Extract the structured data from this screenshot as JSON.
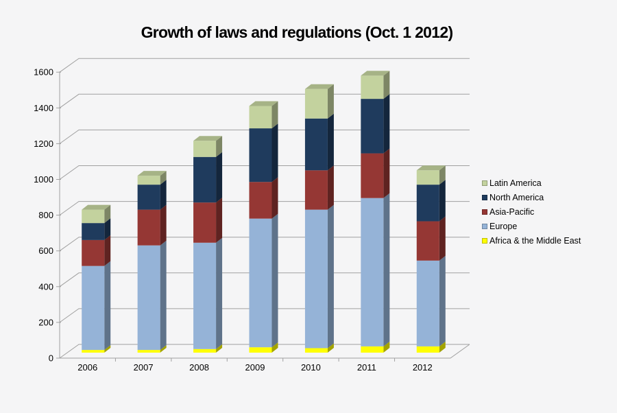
{
  "chart_data": {
    "type": "bar",
    "variant": "3d-stacked-column",
    "title": "Growth of laws and regulations (Oct. 1 2012)",
    "categories": [
      "2006",
      "2007",
      "2008",
      "2009",
      "2010",
      "2011",
      "2012"
    ],
    "series": [
      {
        "name": "Africa & the Middle East",
        "color": "#FFFF00",
        "values": [
          15,
          15,
          20,
          30,
          25,
          35,
          35
        ]
      },
      {
        "name": "Europe",
        "color": "#95B3D7",
        "values": [
          470,
          585,
          595,
          720,
          775,
          830,
          480
        ]
      },
      {
        "name": "Asia-Pacific",
        "color": "#953734",
        "values": [
          145,
          200,
          225,
          205,
          220,
          250,
          220
        ]
      },
      {
        "name": "North America",
        "color": "#1F3B5D",
        "values": [
          95,
          140,
          255,
          300,
          290,
          305,
          205
        ]
      },
      {
        "name": "Latin America",
        "color": "#C3D29E",
        "values": [
          75,
          50,
          90,
          125,
          165,
          130,
          80
        ]
      }
    ],
    "stack_totals": [
      800,
      990,
      1185,
      1380,
      1475,
      1550,
      1020
    ],
    "ylim": [
      0,
      1600
    ],
    "ytick_step": 200,
    "ytick_labels": [
      "0",
      "200",
      "400",
      "600",
      "800",
      "1000",
      "1200",
      "1400",
      "1600"
    ],
    "grid": true,
    "legend_position": "right",
    "legend_order_top_to_bottom": [
      "Latin America",
      "North America",
      "Asia-Pacific",
      "Europe",
      "Africa & the Middle East"
    ],
    "background_color": "#F5F5F6",
    "gridline_color": "#A0A0A0",
    "axis_text_color": "#000000"
  }
}
